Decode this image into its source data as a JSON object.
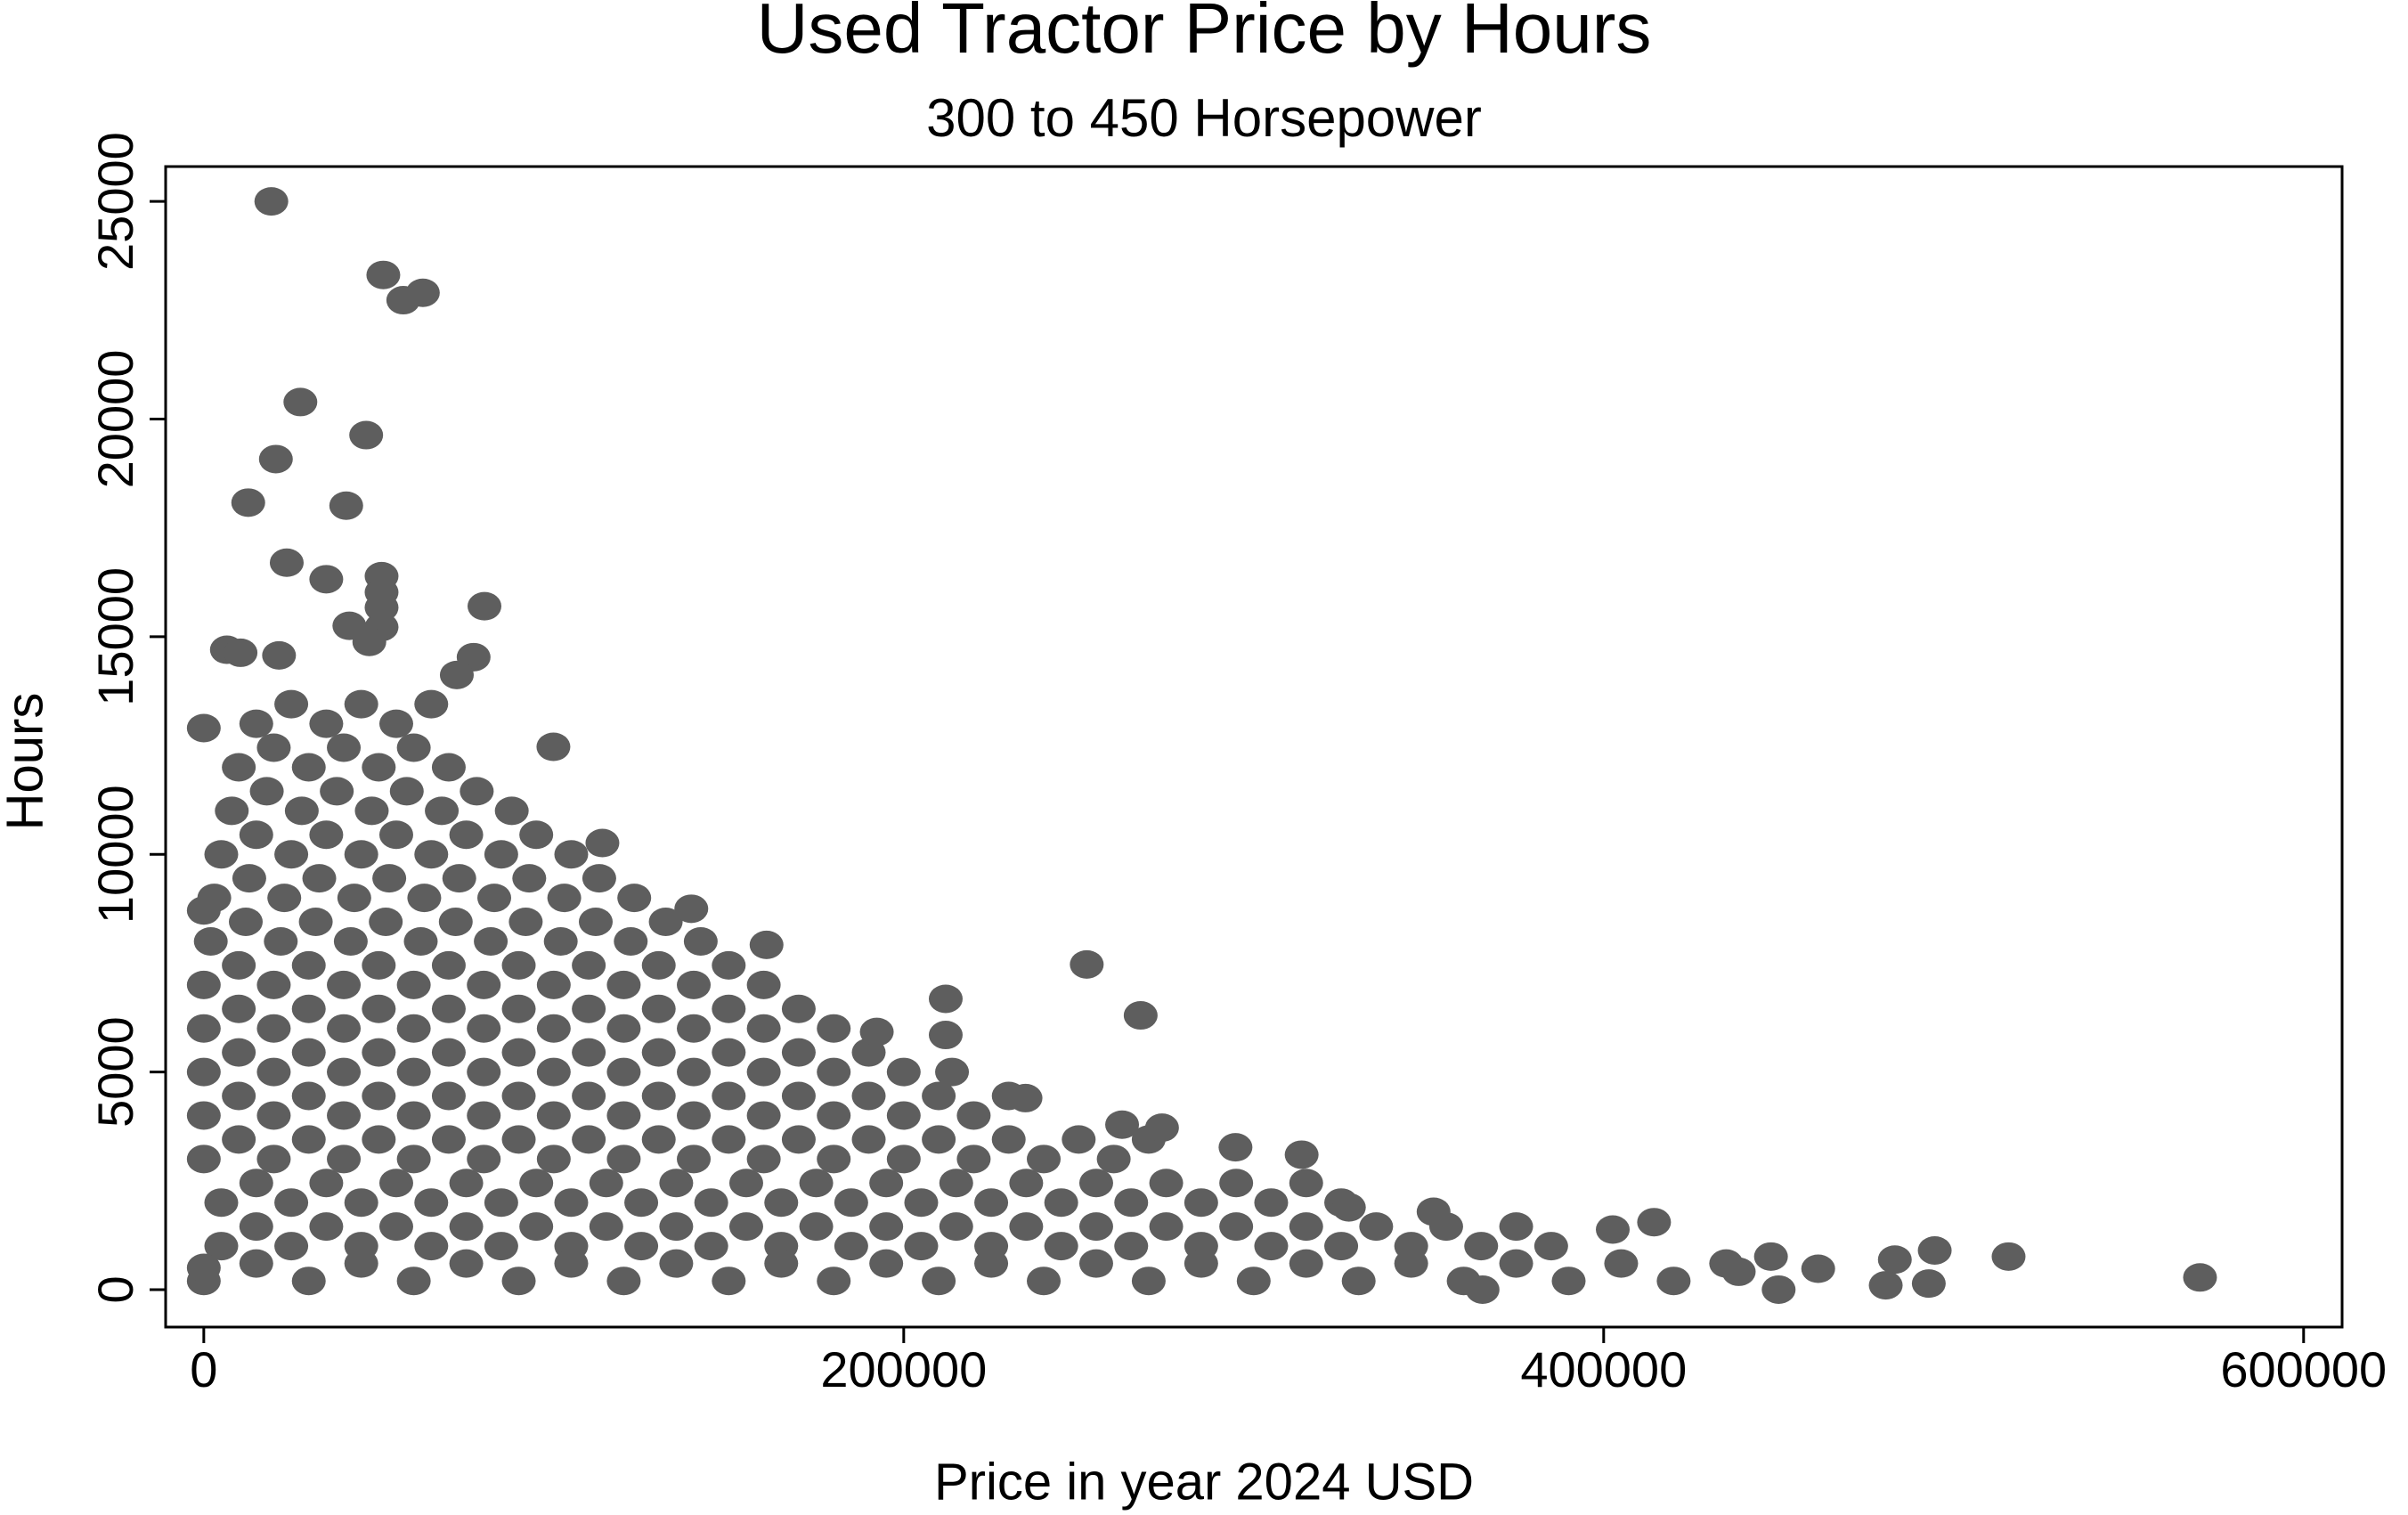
{
  "chart_data": {
    "type": "scatter",
    "title": "Used Tractor Price by Hours",
    "subtitle": "300 to 450 Horsepower",
    "x_label": "Price in year 2024 USD",
    "y_label": "Hours",
    "color": "#5e5e5e",
    "xlim": [
      -10900,
      611000
    ],
    "ylim": [
      -860,
      25800
    ],
    "xticks": [
      0,
      200000,
      400000,
      600000
    ],
    "yticks": [
      0,
      5000,
      10000,
      15000,
      20000,
      25000
    ],
    "grid": false,
    "x": [
      15000,
      25000,
      35000,
      45000,
      55000,
      65000,
      10000,
      20000,
      30000,
      40000,
      50000,
      60000,
      70000,
      8000,
      18000,
      28000,
      38000,
      48000,
      58000,
      68000,
      78000,
      88000,
      5000,
      15000,
      25000,
      35000,
      45000,
      55000,
      65000,
      75000,
      85000,
      95000,
      105000,
      3000,
      13000,
      23000,
      33000,
      43000,
      53000,
      63000,
      73000,
      83000,
      93000,
      103000,
      113000,
      123000,
      2000,
      12000,
      22000,
      32000,
      42000,
      52000,
      62000,
      72000,
      82000,
      92000,
      102000,
      112000,
      122000,
      132000,
      142000,
      0,
      10000,
      20000,
      30000,
      40000,
      50000,
      60000,
      70000,
      80000,
      90000,
      100000,
      110000,
      120000,
      130000,
      140000,
      150000,
      160000,
      0,
      10000,
      20000,
      30000,
      40000,
      50000,
      60000,
      70000,
      80000,
      90000,
      100000,
      110000,
      120000,
      130000,
      140000,
      150000,
      160000,
      170000,
      180000,
      0,
      10000,
      20000,
      30000,
      40000,
      50000,
      60000,
      70000,
      80000,
      90000,
      100000,
      110000,
      120000,
      130000,
      140000,
      150000,
      160000,
      170000,
      180000,
      190000,
      200000,
      0,
      10000,
      20000,
      30000,
      40000,
      50000,
      60000,
      70000,
      80000,
      90000,
      100000,
      110000,
      120000,
      130000,
      140000,
      150000,
      160000,
      170000,
      180000,
      190000,
      200000,
      210000,
      220000,
      230000,
      0,
      10000,
      20000,
      30000,
      40000,
      50000,
      60000,
      70000,
      80000,
      90000,
      100000,
      110000,
      120000,
      130000,
      140000,
      150000,
      160000,
      170000,
      180000,
      190000,
      200000,
      210000,
      220000,
      230000,
      240000,
      250000,
      260000,
      270000,
      5000,
      15000,
      25000,
      35000,
      45000,
      55000,
      65000,
      75000,
      85000,
      95000,
      105000,
      115000,
      125000,
      135000,
      145000,
      155000,
      165000,
      175000,
      185000,
      195000,
      205000,
      215000,
      225000,
      235000,
      245000,
      255000,
      265000,
      275000,
      285000,
      295000,
      305000,
      315000,
      325000,
      5000,
      15000,
      25000,
      35000,
      45000,
      55000,
      65000,
      75000,
      85000,
      95000,
      105000,
      115000,
      125000,
      135000,
      145000,
      155000,
      165000,
      175000,
      185000,
      195000,
      205000,
      215000,
      225000,
      235000,
      245000,
      255000,
      265000,
      275000,
      285000,
      295000,
      305000,
      315000,
      325000,
      335000,
      345000,
      355000,
      365000,
      375000,
      385000,
      0,
      15000,
      30000,
      45000,
      60000,
      75000,
      90000,
      105000,
      120000,
      135000,
      150000,
      165000,
      180000,
      195000,
      210000,
      225000,
      240000,
      255000,
      270000,
      285000,
      300000,
      315000,
      330000,
      345000,
      360000,
      375000,
      390000,
      405000,
      420000,
      435000,
      19300,
      51300,
      57000,
      62600,
      27600,
      20600,
      46400,
      12700,
      40700,
      23700,
      35000,
      50800,
      50800,
      50800,
      50800,
      80200,
      41600,
      47300,
      6600,
      10500,
      21500,
      77100,
      72300,
      99900,
      113900,
      139300,
      160800,
      252300,
      267700,
      212000,
      212000,
      192300,
      313700,
      294800,
      414400,
      402600,
      494600,
      483200,
      515700,
      570400,
      492900,
      480600,
      461300,
      447800,
      450000,
      438600,
      365400,
      0,
      0,
      0,
      262400,
      273800,
      234800,
      213800,
      327200,
      351400
    ],
    "values": [
      13000,
      13450,
      13000,
      13450,
      13000,
      13450,
      12000,
      12450,
      12000,
      12450,
      12000,
      12450,
      12000,
      11000,
      11450,
      11000,
      11450,
      11000,
      11450,
      11000,
      11450,
      11000,
      10000,
      10450,
      10000,
      10450,
      10000,
      10450,
      10000,
      10450,
      10000,
      10450,
      10000,
      9000,
      9450,
      9000,
      9450,
      9000,
      9450,
      9000,
      9450,
      9000,
      9450,
      9000,
      9450,
      9000,
      8000,
      8450,
      8000,
      8450,
      8000,
      8450,
      8000,
      8450,
      8000,
      8450,
      8000,
      8450,
      8000,
      8450,
      8000,
      7000,
      7450,
      7000,
      7450,
      7000,
      7450,
      7000,
      7450,
      7000,
      7450,
      7000,
      7450,
      7000,
      7450,
      7000,
      7450,
      7000,
      6000,
      6450,
      6000,
      6450,
      6000,
      6450,
      6000,
      6450,
      6000,
      6450,
      6000,
      6450,
      6000,
      6450,
      6000,
      6450,
      6000,
      6450,
      6000,
      5000,
      5450,
      5000,
      5450,
      5000,
      5450,
      5000,
      5450,
      5000,
      5450,
      5000,
      5450,
      5000,
      5450,
      5000,
      5450,
      5000,
      5450,
      5000,
      5450,
      5000,
      4000,
      4450,
      4000,
      4450,
      4000,
      4450,
      4000,
      4450,
      4000,
      4450,
      4000,
      4450,
      4000,
      4450,
      4000,
      4450,
      4000,
      4450,
      4000,
      4450,
      4000,
      4450,
      4000,
      4450,
      3000,
      3450,
      3000,
      3450,
      3000,
      3450,
      3000,
      3450,
      3000,
      3450,
      3000,
      3450,
      3000,
      3450,
      3000,
      3450,
      3000,
      3450,
      3000,
      3450,
      3000,
      3450,
      3000,
      3450,
      3000,
      3450,
      3000,
      3450,
      2000,
      2450,
      2000,
      2450,
      2000,
      2450,
      2000,
      2450,
      2000,
      2450,
      2000,
      2450,
      2000,
      2450,
      2000,
      2450,
      2000,
      2450,
      2000,
      2450,
      2000,
      2450,
      2000,
      2450,
      2000,
      2450,
      2000,
      2450,
      2000,
      2450,
      2000,
      2450,
      2000,
      1000,
      1450,
      1000,
      1450,
      1000,
      1450,
      1000,
      1450,
      1000,
      1450,
      1000,
      1450,
      1000,
      1450,
      1000,
      1450,
      1000,
      1450,
      1000,
      1450,
      1000,
      1450,
      1000,
      1450,
      1000,
      1450,
      1000,
      1450,
      1000,
      1450,
      1000,
      1450,
      1000,
      1450,
      1000,
      1450,
      1000,
      1450,
      1000,
      200,
      600,
      200,
      600,
      200,
      600,
      200,
      600,
      200,
      600,
      200,
      600,
      200,
      600,
      200,
      600,
      200,
      600,
      200,
      600,
      200,
      600,
      200,
      600,
      200,
      600,
      200,
      600,
      200,
      600,
      25000,
      23310,
      22730,
      22900,
      20390,
      19080,
      19630,
      18080,
      18010,
      16700,
      16320,
      16390,
      16020,
      15670,
      15220,
      15700,
      15250,
      14880,
      14700,
      14630,
      14570,
      14530,
      14120,
      12470,
      10260,
      8750,
      7920,
      7470,
      6300,
      6680,
      5850,
      5920,
      3100,
      3270,
      1550,
      1380,
      900,
      690,
      760,
      280,
      140,
      100,
      480,
      760,
      0,
      410,
      0,
      12900,
      8710,
      500,
      3790,
      3720,
      4400,
      5000,
      1890,
      1790
    ]
  }
}
